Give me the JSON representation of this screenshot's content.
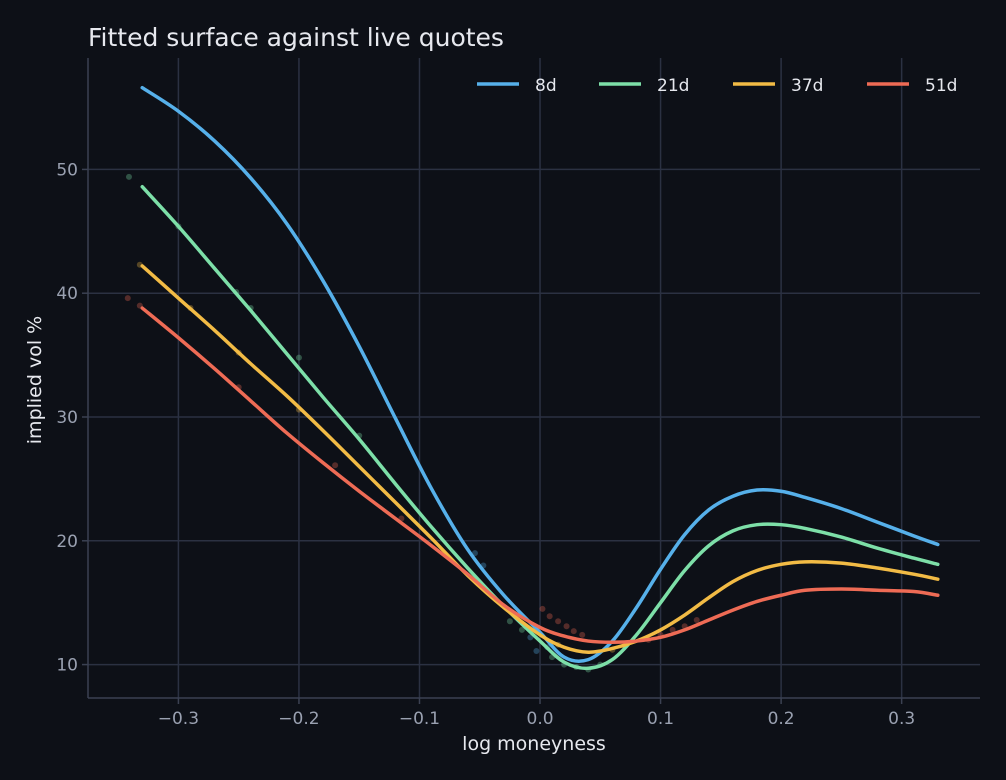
{
  "chart_data": {
    "type": "line",
    "title": "Fitted surface against live quotes",
    "xlabel": "log moneyness",
    "ylabel": "implied vol %",
    "xlim": [
      -0.375,
      0.365
    ],
    "ylim": [
      7.3,
      59
    ],
    "x_ticks": [
      {
        "value": -0.3,
        "label": "−0.3"
      },
      {
        "value": -0.2,
        "label": "−0.2"
      },
      {
        "value": -0.1,
        "label": "−0.1"
      },
      {
        "value": 0.0,
        "label": "0.0"
      },
      {
        "value": 0.1,
        "label": "0.1"
      },
      {
        "value": 0.2,
        "label": "0.2"
      },
      {
        "value": 0.3,
        "label": "0.3"
      }
    ],
    "y_ticks": [
      {
        "value": 10,
        "label": "10"
      },
      {
        "value": 20,
        "label": "20"
      },
      {
        "value": 30,
        "label": "30"
      },
      {
        "value": 40,
        "label": "40"
      },
      {
        "value": 50,
        "label": "50"
      }
    ],
    "grid": true,
    "legend_position": "top-right",
    "colors": {
      "background": "#0d1017",
      "grid": "#2b3142",
      "axis": "#3b4152"
    },
    "series": [
      {
        "name": "8d",
        "color": "#56b0ea",
        "x": [
          -0.33,
          -0.3,
          -0.27,
          -0.24,
          -0.21,
          -0.18,
          -0.15,
          -0.12,
          -0.09,
          -0.06,
          -0.03,
          0.0,
          0.02,
          0.04,
          0.06,
          0.08,
          0.1,
          0.12,
          0.14,
          0.16,
          0.18,
          0.2,
          0.22,
          0.25,
          0.28,
          0.31,
          0.33
        ],
        "y": [
          56.6,
          54.7,
          52.3,
          49.3,
          45.6,
          41.0,
          35.7,
          29.9,
          24.2,
          19.3,
          15.6,
          12.6,
          10.6,
          10.4,
          11.9,
          14.6,
          17.7,
          20.5,
          22.5,
          23.6,
          24.1,
          24.0,
          23.5,
          22.6,
          21.5,
          20.4,
          19.7
        ]
      },
      {
        "name": "21d",
        "color": "#7ddfa8",
        "x": [
          -0.33,
          -0.3,
          -0.27,
          -0.24,
          -0.21,
          -0.18,
          -0.15,
          -0.12,
          -0.09,
          -0.06,
          -0.03,
          0.0,
          0.02,
          0.04,
          0.06,
          0.08,
          0.1,
          0.12,
          0.14,
          0.16,
          0.18,
          0.2,
          0.22,
          0.25,
          0.28,
          0.31,
          0.33
        ],
        "y": [
          48.6,
          45.4,
          42.0,
          38.6,
          35.1,
          31.6,
          28.2,
          24.6,
          21.1,
          17.8,
          14.7,
          11.9,
          10.2,
          9.7,
          10.4,
          12.4,
          15.0,
          17.6,
          19.6,
          20.8,
          21.3,
          21.3,
          21.0,
          20.3,
          19.4,
          18.6,
          18.1
        ]
      },
      {
        "name": "37d",
        "color": "#f2bb45",
        "x": [
          -0.33,
          -0.3,
          -0.27,
          -0.24,
          -0.21,
          -0.18,
          -0.15,
          -0.12,
          -0.09,
          -0.06,
          -0.03,
          0.0,
          0.02,
          0.04,
          0.06,
          0.08,
          0.1,
          0.12,
          0.14,
          0.16,
          0.18,
          0.2,
          0.22,
          0.25,
          0.28,
          0.31,
          0.33
        ],
        "y": [
          42.2,
          39.6,
          37.0,
          34.3,
          31.7,
          28.9,
          26.0,
          23.1,
          20.2,
          17.2,
          14.6,
          12.4,
          11.4,
          11.0,
          11.3,
          11.9,
          12.8,
          14.0,
          15.4,
          16.7,
          17.6,
          18.1,
          18.3,
          18.2,
          17.8,
          17.3,
          16.9
        ]
      },
      {
        "name": "51d",
        "color": "#ee6b55",
        "x": [
          -0.33,
          -0.3,
          -0.27,
          -0.24,
          -0.21,
          -0.18,
          -0.15,
          -0.12,
          -0.09,
          -0.06,
          -0.03,
          0.0,
          0.02,
          0.04,
          0.06,
          0.08,
          0.1,
          0.12,
          0.14,
          0.16,
          0.18,
          0.2,
          0.22,
          0.25,
          0.28,
          0.31,
          0.33
        ],
        "y": [
          38.8,
          36.4,
          33.9,
          31.3,
          28.7,
          26.3,
          24.0,
          21.8,
          19.6,
          17.3,
          14.8,
          13.0,
          12.3,
          11.9,
          11.8,
          11.9,
          12.2,
          12.8,
          13.6,
          14.4,
          15.1,
          15.6,
          16.0,
          16.1,
          16.0,
          15.9,
          15.6
        ]
      }
    ],
    "quotes": [
      {
        "series": "8d",
        "x": -0.054,
        "y": 19.0
      },
      {
        "series": "8d",
        "x": -0.047,
        "y": 18.0
      },
      {
        "series": "8d",
        "x": -0.008,
        "y": 12.2
      },
      {
        "series": "8d",
        "x": -0.003,
        "y": 11.1
      },
      {
        "series": "8d",
        "x": 0.006,
        "y": 11.4
      },
      {
        "series": "21d",
        "x": -0.341,
        "y": 49.4
      },
      {
        "series": "21d",
        "x": -0.3,
        "y": 45.4
      },
      {
        "series": "21d",
        "x": -0.252,
        "y": 40.1
      },
      {
        "series": "21d",
        "x": -0.24,
        "y": 38.8
      },
      {
        "series": "21d",
        "x": -0.2,
        "y": 34.8
      },
      {
        "series": "21d",
        "x": -0.15,
        "y": 28.5
      },
      {
        "series": "21d",
        "x": -0.025,
        "y": 13.5
      },
      {
        "series": "21d",
        "x": -0.015,
        "y": 12.8
      },
      {
        "series": "21d",
        "x": 0.01,
        "y": 10.6
      },
      {
        "series": "21d",
        "x": 0.02,
        "y": 10.0
      },
      {
        "series": "21d",
        "x": 0.03,
        "y": 9.8
      },
      {
        "series": "21d",
        "x": 0.04,
        "y": 9.6
      },
      {
        "series": "21d",
        "x": 0.05,
        "y": 10.0
      },
      {
        "series": "37d",
        "x": -0.332,
        "y": 42.3
      },
      {
        "series": "37d",
        "x": -0.29,
        "y": 38.8
      },
      {
        "series": "37d",
        "x": -0.25,
        "y": 35.2
      },
      {
        "series": "37d",
        "x": -0.2,
        "y": 30.6
      },
      {
        "series": "37d",
        "x": 0.015,
        "y": 11.6
      },
      {
        "series": "37d",
        "x": 0.06,
        "y": 11.2
      },
      {
        "series": "37d",
        "x": 0.07,
        "y": 11.5
      },
      {
        "series": "51d",
        "x": -0.342,
        "y": 39.6
      },
      {
        "series": "51d",
        "x": -0.332,
        "y": 39.0
      },
      {
        "series": "51d",
        "x": -0.25,
        "y": 32.4
      },
      {
        "series": "51d",
        "x": -0.17,
        "y": 26.1
      },
      {
        "series": "51d",
        "x": -0.115,
        "y": 21.8
      },
      {
        "series": "51d",
        "x": 0.002,
        "y": 14.5
      },
      {
        "series": "51d",
        "x": 0.008,
        "y": 13.9
      },
      {
        "series": "51d",
        "x": 0.015,
        "y": 13.5
      },
      {
        "series": "51d",
        "x": 0.022,
        "y": 13.1
      },
      {
        "series": "51d",
        "x": 0.028,
        "y": 12.7
      },
      {
        "series": "51d",
        "x": 0.035,
        "y": 12.4
      },
      {
        "series": "51d",
        "x": 0.09,
        "y": 12.0
      },
      {
        "series": "51d",
        "x": 0.1,
        "y": 12.4
      },
      {
        "series": "51d",
        "x": 0.11,
        "y": 12.8
      },
      {
        "series": "51d",
        "x": 0.12,
        "y": 13.1
      },
      {
        "series": "51d",
        "x": 0.13,
        "y": 13.6
      }
    ]
  }
}
